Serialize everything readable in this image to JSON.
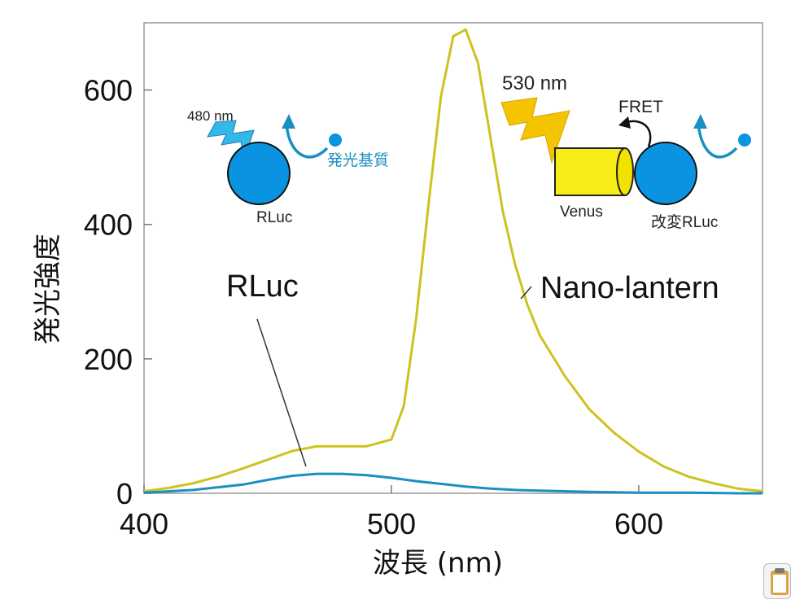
{
  "chart_data": {
    "type": "line",
    "title": "",
    "xlabel": "波長 (nm)",
    "ylabel": "発光強度",
    "xlim": [
      400,
      650
    ],
    "ylim": [
      0,
      700
    ],
    "xticks": [
      400,
      500,
      600
    ],
    "yticks": [
      0,
      200,
      400,
      600
    ],
    "grid": false,
    "series": [
      {
        "name": "Nano-lantern",
        "color": "#cfc21e",
        "x": [
          400,
          410,
          420,
          430,
          440,
          450,
          460,
          470,
          480,
          490,
          500,
          505,
          510,
          515,
          520,
          525,
          530,
          535,
          540,
          545,
          550,
          555,
          560,
          570,
          580,
          590,
          600,
          610,
          620,
          630,
          640,
          650
        ],
        "y": [
          3,
          8,
          15,
          25,
          37,
          50,
          63,
          70,
          70,
          70,
          80,
          130,
          260,
          430,
          590,
          680,
          690,
          640,
          530,
          420,
          340,
          280,
          235,
          175,
          125,
          90,
          62,
          40,
          25,
          15,
          7,
          3
        ]
      },
      {
        "name": "RLuc",
        "color": "#1a8fc2",
        "x": [
          400,
          420,
          440,
          450,
          460,
          470,
          480,
          490,
          500,
          510,
          520,
          530,
          540,
          550,
          560,
          580,
          600,
          620,
          640,
          650
        ],
        "y": [
          1,
          5,
          13,
          20,
          26,
          29,
          29,
          27,
          23,
          18,
          14,
          10,
          7,
          5,
          4,
          2,
          1,
          1,
          0,
          0
        ]
      }
    ],
    "annotations": {
      "rluc_schematic": {
        "wavelength": "480 nm",
        "substrate": "発光基質",
        "protein": "RLuc"
      },
      "nanolantern_schematic": {
        "wavelength": "530 nm",
        "transfer": "FRET",
        "acceptor": "Venus",
        "donor": "改変RLuc"
      }
    }
  },
  "colors": {
    "nano_lantern": "#cfc21e",
    "rluc": "#1a8fc2",
    "protein_fill": "#0a93e0",
    "venus_fill": "#f7ec17",
    "bolt_yellow": "#f5c400",
    "bolt_blue": "#33b8e8"
  }
}
